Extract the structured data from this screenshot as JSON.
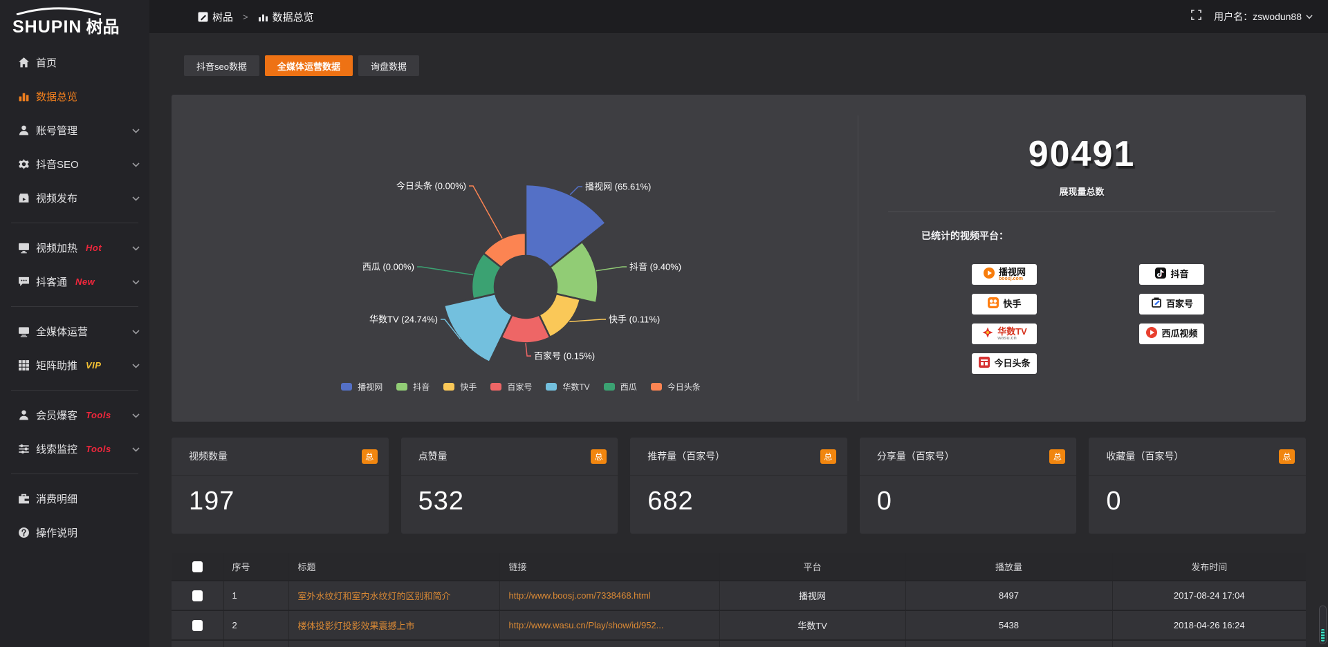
{
  "brand": {
    "logo_en": "SHUPIN",
    "logo_cn": "树品"
  },
  "topbar": {
    "breadcrumb": [
      "树品",
      "数据总览"
    ],
    "username_label": "用户名：",
    "username": "zswodun88"
  },
  "sidebar": {
    "items": [
      {
        "label": "首页",
        "icon": "home-icon"
      },
      {
        "label": "数据总览",
        "icon": "bar-chart-icon",
        "active": true
      },
      {
        "label": "账号管理",
        "icon": "user-icon",
        "chevron": true
      },
      {
        "label": "抖音SEO",
        "icon": "gear-icon",
        "chevron": true
      },
      {
        "label": "视频发布",
        "icon": "video-publish-icon",
        "chevron": true,
        "divider_after": true
      },
      {
        "label": "视频加热",
        "icon": "monitor-icon",
        "badge": "Hot",
        "badge_color": "#f0273c",
        "chevron": true
      },
      {
        "label": "抖客通",
        "icon": "chat-icon",
        "badge": "New",
        "badge_color": "#f0273c",
        "chevron": true,
        "divider_after": true
      },
      {
        "label": "全媒体运营",
        "icon": "screen-icon",
        "chevron": true
      },
      {
        "label": "矩阵助推",
        "icon": "grid-icon",
        "badge": "VIP",
        "badge_color": "#f5c233",
        "chevron": true,
        "divider_after": true
      },
      {
        "label": "会员爆客",
        "icon": "member-icon",
        "badge": "Tools",
        "badge_color": "#f0273c",
        "chevron": true
      },
      {
        "label": "线索监控",
        "icon": "sliders-icon",
        "badge": "Tools",
        "badge_color": "#f0273c",
        "chevron": true,
        "divider_after": true
      },
      {
        "label": "消费明细",
        "icon": "wallet-icon"
      },
      {
        "label": "操作说明",
        "icon": "help-icon"
      }
    ]
  },
  "tabs": [
    {
      "label": "抖音seo数据",
      "active": false
    },
    {
      "label": "全媒体运营数据",
      "active": true
    },
    {
      "label": "询盘数据",
      "active": false
    }
  ],
  "chart_data": {
    "type": "pie",
    "subtype": "nightingale-rose",
    "categories": [
      "播视网",
      "抖音",
      "快手",
      "百家号",
      "华数TV",
      "西瓜",
      "今日头条"
    ],
    "values": [
      65.61,
      9.4,
      0.11,
      0.15,
      24.74,
      0.0,
      0.0
    ],
    "unit": "%",
    "labels": [
      "播视网 (65.61%)",
      "抖音 (9.40%)",
      "快手 (0.11%)",
      "百家号 (0.15%)",
      "华数TV (24.74%)",
      "西瓜 (0.00%)",
      "今日头条 (0.00%)"
    ],
    "colors": [
      "#5470c6",
      "#91cc75",
      "#fac858",
      "#ee6666",
      "#73c0de",
      "#3ba272",
      "#fc8452"
    ],
    "legend": [
      "播视网",
      "抖音",
      "快手",
      "百家号",
      "华数TV",
      "西瓜",
      "今日头条"
    ],
    "legend_position": "bottom"
  },
  "summary": {
    "total_value": "90491",
    "total_label": "展现量总数",
    "platforms_title": "已统计的视频平台：",
    "platforms_left": [
      {
        "name": "播视网",
        "sub": "boosj.com",
        "logo": "boosj-logo"
      },
      {
        "name": "快手",
        "logo": "kuaishou-logo"
      },
      {
        "name": "华数TV",
        "sub": "wasu.cn",
        "sub_gray": true,
        "name_color": "#d6341f",
        "logo": "wasu-logo"
      },
      {
        "name": "今日头条",
        "logo": "toutiao-logo"
      }
    ],
    "platforms_right": [
      {
        "name": "抖音",
        "logo": "douyin-logo"
      },
      {
        "name": "百家号",
        "logo": "baijiahao-logo"
      },
      {
        "name": "西瓜视频",
        "logo": "xigua-logo"
      }
    ]
  },
  "stat_cards": [
    {
      "label": "视频数量",
      "badge": "总",
      "value": "197"
    },
    {
      "label": "点赞量",
      "badge": "总",
      "value": "532"
    },
    {
      "label": "推荐量（百家号）",
      "badge": "总",
      "value": "682"
    },
    {
      "label": "分享量（百家号）",
      "badge": "总",
      "value": "0"
    },
    {
      "label": "收藏量（百家号）",
      "badge": "总",
      "value": "0"
    }
  ],
  "table": {
    "headers": [
      "序号",
      "标题",
      "链接",
      "平台",
      "播放量",
      "发布时间"
    ],
    "rows": [
      {
        "index": "1",
        "title": "室外水纹灯和室内水纹灯的区别和简介",
        "link": "http://www.boosj.com/7338468.html",
        "platform": "播视网",
        "plays": "8497",
        "published": "2017-08-24 17:04"
      },
      {
        "index": "2",
        "title": "楼体投影灯投影效果震撼上市",
        "link": "http://www.wasu.cn/Play/show/id/952...",
        "platform": "华数TV",
        "plays": "5438",
        "published": "2018-04-26 16:24"
      },
      {
        "index": "",
        "title": "",
        "link": "",
        "platform": "",
        "plays": "",
        "published": ""
      }
    ]
  }
}
